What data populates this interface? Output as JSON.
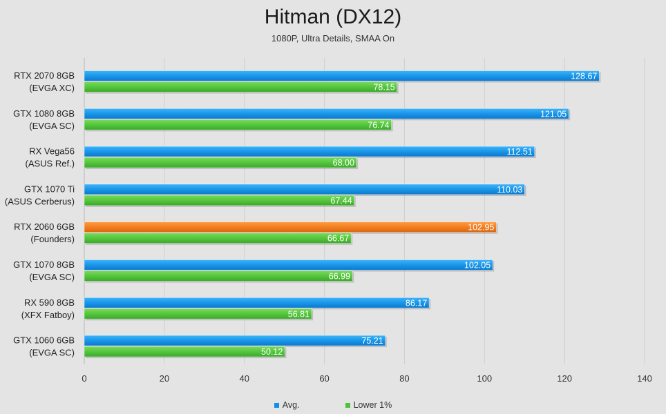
{
  "chart_data": {
    "type": "bar",
    "orientation": "horizontal",
    "title": "Hitman (DX12)",
    "subtitle": "1080P, Ultra Details, SMAA On",
    "categories": [
      [
        "RTX 2070 8GB",
        "(EVGA XC)"
      ],
      [
        "GTX 1080 8GB",
        "(EVGA SC)"
      ],
      [
        "RX Vega56",
        "(ASUS Ref.)"
      ],
      [
        "GTX 1070 Ti",
        "(ASUS Cerberus)"
      ],
      [
        "RTX 2060 6GB",
        "(Founders)"
      ],
      [
        "GTX 1070 8GB",
        "(EVGA SC)"
      ],
      [
        "RX 590 8GB",
        "(XFX Fatboy)"
      ],
      [
        "GTX 1060 6GB",
        "(EVGA SC)"
      ]
    ],
    "series": [
      {
        "name": "Avg.",
        "color": "#0f8fe6",
        "values": [
          128.67,
          121.05,
          112.51,
          110.03,
          102.95,
          102.05,
          86.17,
          75.21
        ],
        "labels": [
          "128.67",
          "121.05",
          "112.51",
          "110.03",
          "102.95",
          "102.05",
          "86.17",
          "75.21"
        ]
      },
      {
        "name": "Lower 1%",
        "color": "#4ec23a",
        "values": [
          78.15,
          76.74,
          68.0,
          67.44,
          66.67,
          66.99,
          56.81,
          50.12
        ],
        "labels": [
          "78.15",
          "76.74",
          "68.00",
          "67.44",
          "66.67",
          "66.99",
          "56.81",
          "50.12"
        ]
      }
    ],
    "highlight": {
      "category_index": 4,
      "series_index": 0,
      "color": "#f07a1c"
    },
    "xlim": [
      0,
      140
    ],
    "xticks": [
      0,
      20,
      40,
      60,
      80,
      100,
      120,
      140
    ],
    "grid": "vertical",
    "legend_position": "bottom-center"
  }
}
